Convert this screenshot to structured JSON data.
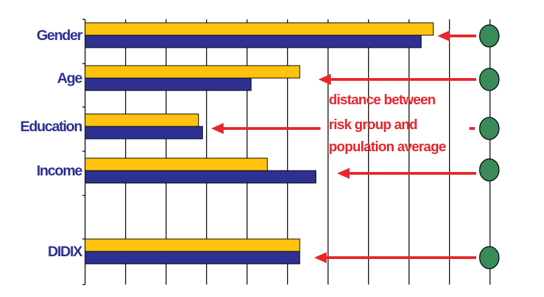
{
  "chart_data": {
    "type": "bar",
    "orientation": "horizontal",
    "categories": [
      "Gender",
      "Age",
      "Education",
      "Income",
      "DIDIX"
    ],
    "series": [
      {
        "values": [
          8.6,
          5.3,
          2.8,
          4.5,
          5.3
        ],
        "color": "#ffc20e"
      },
      {
        "values": [
          8.3,
          4.1,
          2.9,
          5.7,
          5.3
        ],
        "color": "#2e3192"
      }
    ],
    "xlim": [
      0,
      10
    ],
    "grid": "vertical",
    "annotation": {
      "lines": [
        "distance between",
        "risk group and",
        "population average"
      ],
      "color": "#e8262c"
    },
    "marker_color": "#3a8a5a"
  }
}
